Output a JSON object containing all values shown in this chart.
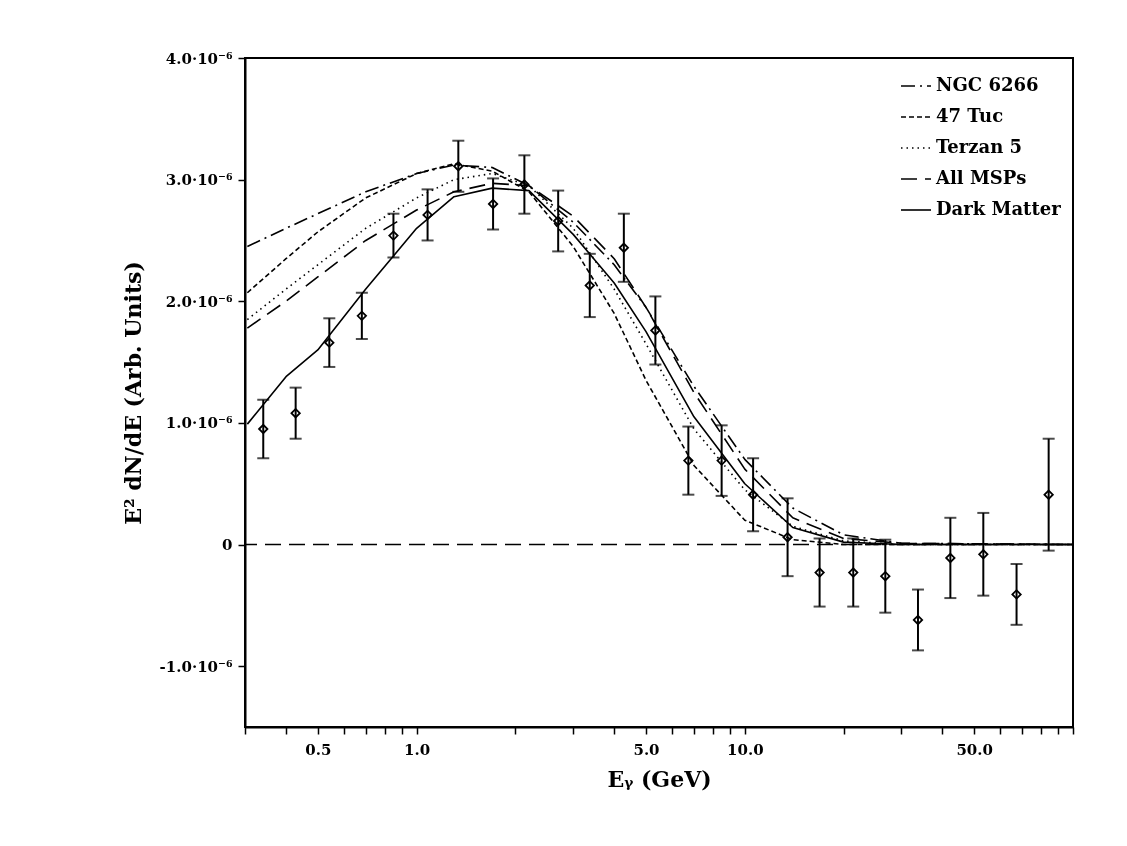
{
  "chart_data": {
    "type": "line",
    "xlabel": "Eᵧ (GeV)",
    "ylabel": "E² dN/dE (Arb. Units)",
    "log": "x",
    "grid": false,
    "legend": "top right",
    "xlim": [
      0.3,
      100
    ],
    "xticks": [
      {
        "value": 0.3,
        "label": null
      },
      {
        "value": 0.4,
        "label": null
      },
      0.5,
      {
        "value": 0.6,
        "label": null
      },
      {
        "value": 0.7,
        "label": null
      },
      {
        "value": 0.8,
        "label": null
      },
      {
        "value": 0.9,
        "label": null
      },
      {
        "value": 1,
        "label": "1.0"
      },
      {
        "value": 2,
        "label": null
      },
      {
        "value": 3,
        "label": null
      },
      {
        "value": 4,
        "label": null
      },
      {
        "value": 5,
        "label": "5.0"
      },
      {
        "value": 6,
        "label": null
      },
      {
        "value": 7,
        "label": null
      },
      {
        "value": 8,
        "label": null
      },
      {
        "value": 9,
        "label": null
      },
      {
        "value": 10,
        "label": "10.0"
      },
      {
        "value": 20,
        "label": null
      },
      {
        "value": 30,
        "label": null
      },
      {
        "value": 40,
        "label": null
      },
      {
        "value": 50,
        "label": "50.0"
      },
      {
        "value": 60,
        "label": null
      },
      {
        "value": 70,
        "label": null
      },
      {
        "value": 80,
        "label": null
      },
      {
        "value": 90,
        "label": null
      },
      {
        "value": 100,
        "label": null
      }
    ],
    "ylim": [
      -1.5e-06,
      4e-06
    ],
    "yticks": [
      {
        "value": -1e-06,
        "label": "-1.0·10⁻⁶"
      },
      0,
      {
        "value": 1e-06,
        "label": "1.0·10⁻⁶"
      },
      {
        "value": 2e-06,
        "label": "2.0·10⁻⁶"
      },
      {
        "value": 3e-06,
        "label": "3.0·10⁻⁶"
      },
      {
        "value": 4e-06,
        "label": "4.0·10⁻⁶"
      }
    ],
    "ref_lines": [
      {
        "axis": "y",
        "value": 0,
        "color": "#000000",
        "line_style": "longdash"
      }
    ],
    "series": [
      {
        "name": "NGC 6266",
        "color": "#000000",
        "line_style": "dashdot",
        "x": [
          0.305,
          0.4,
          0.5,
          0.7,
          1.0,
          1.3,
          1.7,
          2.2,
          3.0,
          4.0,
          5.0,
          7.0,
          10,
          14,
          20,
          30,
          100
        ],
        "values": [
          2.45e-06,
          2.6e-06,
          2.72e-06,
          2.9e-06,
          3.05e-06,
          3.12e-06,
          3.1e-06,
          2.95e-06,
          2.65e-06,
          2.3e-06,
          1.95e-06,
          1.3e-06,
          7e-07,
          3e-07,
          8e-08,
          1e-08,
          0
        ]
      },
      {
        "name": "47 Tuc",
        "color": "#000000",
        "line_style": "dashed",
        "x": [
          0.305,
          0.4,
          0.5,
          0.7,
          1.0,
          1.3,
          1.7,
          2.2,
          3.0,
          4.0,
          5.0,
          7.0,
          10,
          14,
          20,
          30,
          100
        ],
        "values": [
          2.07e-06,
          2.35e-06,
          2.57e-06,
          2.85e-06,
          3.05e-06,
          3.13e-06,
          3.07e-06,
          2.9e-06,
          2.45e-06,
          1.9e-06,
          1.35e-06,
          6.5e-07,
          2e-07,
          4e-08,
          0,
          0,
          0
        ]
      },
      {
        "name": "Terzan 5",
        "color": "#000000",
        "line_style": "dotted",
        "x": [
          0.305,
          0.4,
          0.5,
          0.7,
          1.0,
          1.3,
          1.7,
          2.2,
          3.0,
          4.0,
          5.0,
          7.0,
          10,
          14,
          20,
          30,
          100
        ],
        "values": [
          1.85e-06,
          2.1e-06,
          2.3e-06,
          2.6e-06,
          2.85e-06,
          3e-06,
          3.05e-06,
          2.95e-06,
          2.6e-06,
          2.1e-06,
          1.65e-06,
          9.5e-07,
          4.5e-07,
          1.5e-07,
          3e-08,
          0,
          0
        ]
      },
      {
        "name": "All MSPs",
        "color": "#000000",
        "line_style": "longdash",
        "x": [
          0.305,
          0.4,
          0.5,
          0.7,
          1.0,
          1.3,
          1.7,
          2.2,
          3.0,
          4.0,
          5.0,
          7.0,
          10,
          14,
          20,
          30,
          100
        ],
        "values": [
          1.78e-06,
          2e-06,
          2.2e-06,
          2.5e-06,
          2.75e-06,
          2.9e-06,
          2.97e-06,
          2.95e-06,
          2.7e-06,
          2.35e-06,
          1.95e-06,
          1.25e-06,
          6.2e-07,
          2.2e-07,
          5e-08,
          1e-08,
          0
        ]
      },
      {
        "name": "Dark Matter",
        "color": "#000000",
        "line_style": "solid",
        "x": [
          0.305,
          0.4,
          0.5,
          0.7,
          1.0,
          1.3,
          1.7,
          2.2,
          3.0,
          4.0,
          5.0,
          7.0,
          10,
          14,
          20,
          30,
          100
        ],
        "values": [
          9.9e-07,
          1.38e-06,
          1.6e-06,
          2.1e-06,
          2.6e-06,
          2.86e-06,
          2.93e-06,
          2.91e-06,
          2.55e-06,
          2.15e-06,
          1.75e-06,
          1.05e-06,
          5e-07,
          1.4e-07,
          2e-08,
          0,
          0
        ]
      },
      {
        "type": "scatter",
        "color": "#000000",
        "marker": "diamond",
        "x": [
          0.341,
          0.428,
          0.542,
          0.681,
          0.85,
          1.08,
          1.34,
          1.71,
          2.13,
          2.7,
          3.37,
          4.28,
          5.34,
          6.73,
          8.5,
          10.6,
          13.5,
          16.9,
          21.4,
          26.8,
          33.7,
          42.3,
          53.3,
          67.3,
          84.3
        ],
        "values": [
          9.5e-07,
          1.08e-06,
          1.66e-06,
          1.88e-06,
          2.54e-06,
          2.71e-06,
          3.11e-06,
          2.8e-06,
          2.96e-06,
          2.66e-06,
          2.13e-06,
          2.44e-06,
          1.76e-06,
          6.9e-07,
          6.9e-07,
          4.1e-07,
          6e-08,
          -2.3e-07,
          -2.3e-07,
          -2.6e-07,
          -6.2e-07,
          -1.1e-07,
          -8e-08,
          -4.1e-07,
          4.1e-07
        ],
        "errors": [
          2.4e-07,
          2.1e-07,
          2e-07,
          1.9e-07,
          1.8e-07,
          2.1e-07,
          2.1e-07,
          2.1e-07,
          2.4e-07,
          2.5e-07,
          2.6e-07,
          2.8e-07,
          2.8e-07,
          2.8e-07,
          2.9e-07,
          3e-07,
          3.2e-07,
          2.8e-07,
          2.8e-07,
          3e-07,
          2.5e-07,
          3.3e-07,
          3.4e-07,
          2.5e-07,
          4.6e-07
        ]
      }
    ]
  }
}
